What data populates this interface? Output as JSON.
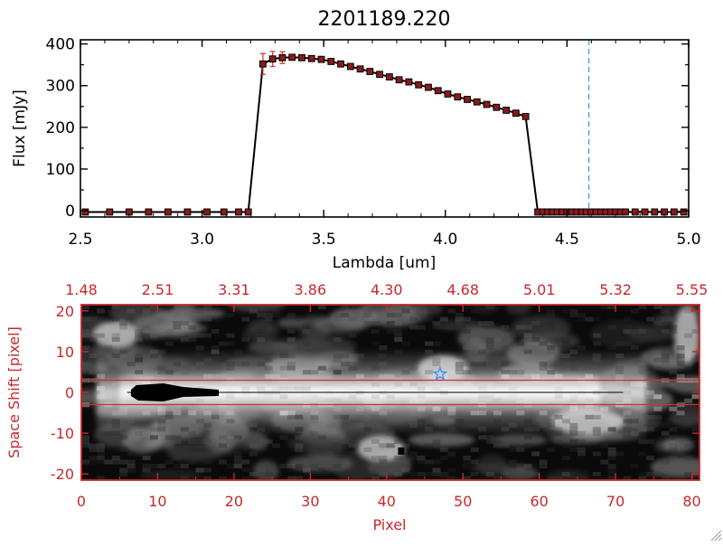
{
  "chart_data": [
    {
      "type": "line",
      "title": "2201189.220",
      "xlabel": "Lambda [um]",
      "ylabel": "Flux [mJy]",
      "xlim": [
        2.5,
        5.0
      ],
      "ylim": [
        -15,
        410
      ],
      "x_ticks": [
        "2.5",
        "3.0",
        "3.5",
        "4.0",
        "4.5",
        "5.0"
      ],
      "y_ticks": [
        "0",
        "100",
        "200",
        "300",
        "400"
      ],
      "vline_x": 4.59,
      "grid": false,
      "series": [
        {
          "x": [
            2.52,
            2.62,
            2.7,
            2.78,
            2.86,
            2.94,
            3.02,
            3.09,
            3.15,
            3.19,
            3.25,
            3.29,
            3.33,
            3.37,
            3.41,
            3.45,
            3.49,
            3.53,
            3.57,
            3.61,
            3.65,
            3.69,
            3.73,
            3.77,
            3.81,
            3.85,
            3.89,
            3.93,
            3.97,
            4.01,
            4.05,
            4.09,
            4.13,
            4.17,
            4.21,
            4.25,
            4.29,
            4.33,
            4.38,
            4.4,
            4.42,
            4.44,
            4.46,
            4.48,
            4.5,
            4.52,
            4.54,
            4.56,
            4.58,
            4.6,
            4.62,
            4.64,
            4.66,
            4.68,
            4.7,
            4.72,
            4.74,
            4.78,
            4.82,
            4.86,
            4.9,
            4.94,
            4.98
          ],
          "y": [
            -3,
            -3,
            -3,
            -3,
            -3,
            -3,
            -3,
            -3,
            -3,
            -3,
            352,
            364,
            367,
            368,
            367,
            365,
            363,
            358,
            352,
            346,
            340,
            334,
            327,
            321,
            314,
            309,
            302,
            296,
            288,
            280,
            273,
            267,
            261,
            255,
            248,
            241,
            234,
            226,
            -3,
            -3,
            -3,
            -3,
            -3,
            -3,
            -3,
            -3,
            -3,
            -3,
            -3,
            -3,
            -3,
            -3,
            -3,
            -3,
            -3,
            -3,
            -3,
            -3,
            -3,
            -3,
            -3,
            -3,
            -3
          ],
          "errors": [
            0,
            0,
            0,
            0,
            0,
            0,
            0,
            0,
            0,
            0,
            25,
            18,
            14,
            0,
            0,
            0,
            0,
            0,
            0,
            0,
            0,
            0,
            0,
            0,
            0,
            0,
            0,
            0,
            0,
            0,
            0,
            0,
            0,
            0,
            0,
            0,
            0,
            0,
            0,
            0,
            0,
            0,
            0,
            0,
            0,
            0,
            0,
            0,
            0,
            0,
            0,
            0,
            0,
            0,
            0,
            0,
            0,
            0,
            0,
            0,
            0,
            0,
            0
          ],
          "marker": "square",
          "line_color": "#000000",
          "marker_color": "#8b1a1a"
        }
      ]
    },
    {
      "type": "heatmap",
      "xlabel": "Pixel",
      "ylabel": "Space Shift [pixel]",
      "xlim": [
        0,
        81
      ],
      "ylim": [
        -21.5,
        21.5
      ],
      "x_ticks": [
        "0",
        "10",
        "20",
        "30",
        "40",
        "50",
        "60",
        "70",
        "80"
      ],
      "y_ticks": [
        "-20",
        "-10",
        "0",
        "10",
        "20"
      ],
      "top_axis_ticks": [
        "1.48",
        "2.51",
        "3.31",
        "3.86",
        "4.30",
        "4.68",
        "5.01",
        "5.32",
        "5.55"
      ],
      "colormap": "grayscale",
      "hlines_y": [
        3,
        -3
      ],
      "center_line_y": 0,
      "star_marker": {
        "x": 47,
        "y": 4.5
      },
      "blob": {
        "x_start": 6.5,
        "x_end": 18,
        "y": 0
      },
      "axis_color": "#c8282c"
    }
  ]
}
